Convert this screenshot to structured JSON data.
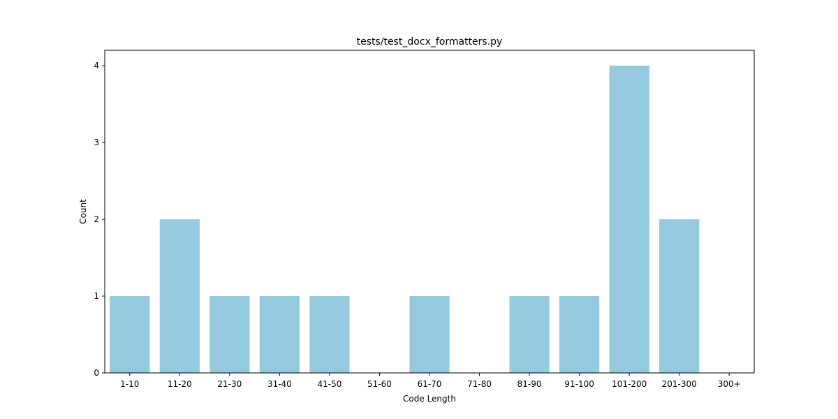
{
  "chart_data": {
    "type": "bar",
    "title": "tests/test_docx_formatters.py",
    "xlabel": "Code Length",
    "ylabel": "Count",
    "categories": [
      "1-10",
      "11-20",
      "21-30",
      "31-40",
      "41-50",
      "51-60",
      "61-70",
      "71-80",
      "81-90",
      "91-100",
      "101-200",
      "201-300",
      "300+"
    ],
    "values": [
      1,
      2,
      1,
      1,
      1,
      0,
      1,
      0,
      1,
      1,
      4,
      2,
      0
    ],
    "ylim": [
      0,
      4.2
    ],
    "yticks": [
      0,
      1,
      2,
      3,
      4
    ],
    "grid": false,
    "legend": "none",
    "bar_color": "#94c9df"
  }
}
